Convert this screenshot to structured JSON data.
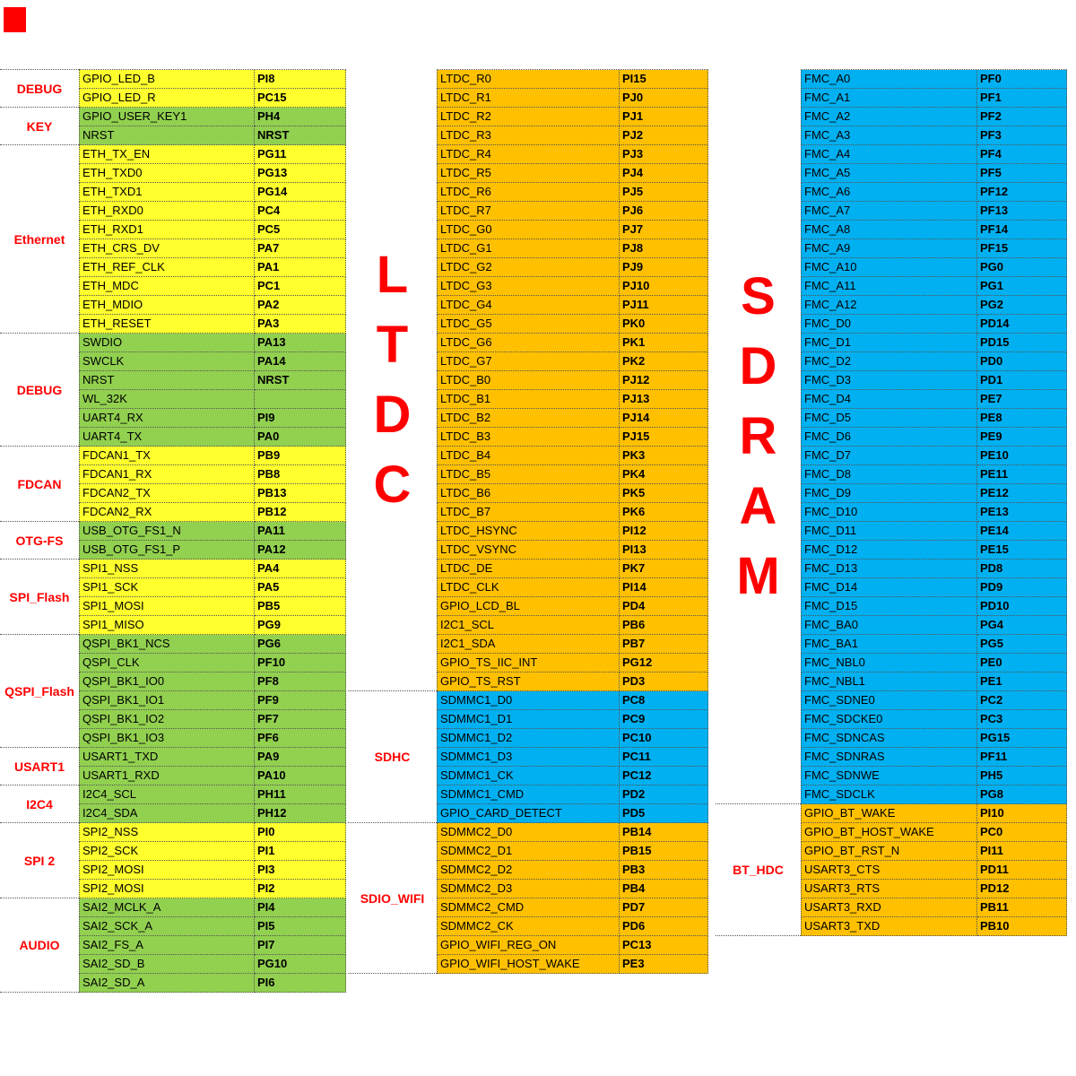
{
  "colors": {
    "yellow": "#FFFF2E",
    "green": "#92D050",
    "orange": "#FFC000",
    "blue": "#00B0F0",
    "label_red": "#FF0000"
  },
  "left_table": {
    "groups": [
      {
        "label": "DEBUG",
        "big": false,
        "color": "yellow",
        "rows": [
          [
            "GPIO_LED_B",
            "PI8"
          ],
          [
            "GPIO_LED_R",
            "PC15"
          ]
        ]
      },
      {
        "label": "KEY",
        "big": false,
        "color": "green",
        "rows": [
          [
            "GPIO_USER_KEY1",
            "PH4"
          ],
          [
            "NRST",
            "NRST"
          ]
        ]
      },
      {
        "label": "Ethernet",
        "big": false,
        "color": "yellow",
        "rows": [
          [
            "ETH_TX_EN",
            "PG11"
          ],
          [
            "ETH_TXD0",
            "PG13"
          ],
          [
            "ETH_TXD1",
            "PG14"
          ],
          [
            "ETH_RXD0",
            "PC4"
          ],
          [
            "ETH_RXD1",
            "PC5"
          ],
          [
            "ETH_CRS_DV",
            "PA7"
          ],
          [
            "ETH_REF_CLK",
            "PA1"
          ],
          [
            "ETH_MDC",
            "PC1"
          ],
          [
            "ETH_MDIO",
            "PA2"
          ],
          [
            "ETH_RESET",
            "PA3"
          ]
        ]
      },
      {
        "label": "DEBUG",
        "big": false,
        "color": "green",
        "rows": [
          [
            "SWDIO",
            "PA13"
          ],
          [
            "SWCLK",
            "PA14"
          ],
          [
            "NRST",
            "NRST"
          ],
          [
            "WL_32K",
            ""
          ],
          [
            "UART4_RX",
            "PI9"
          ],
          [
            "UART4_TX",
            "PA0"
          ]
        ]
      },
      {
        "label": "FDCAN",
        "big": false,
        "color": "yellow",
        "rows": [
          [
            "FDCAN1_TX",
            "PB9"
          ],
          [
            "FDCAN1_RX",
            "PB8"
          ],
          [
            "FDCAN2_TX",
            "PB13"
          ],
          [
            "FDCAN2_RX",
            "PB12"
          ]
        ]
      },
      {
        "label": "OTG-FS",
        "big": false,
        "color": "green",
        "rows": [
          [
            "USB_OTG_FS1_N",
            "PA11"
          ],
          [
            "USB_OTG_FS1_P",
            "PA12"
          ]
        ]
      },
      {
        "label": "SPI_Flash",
        "big": false,
        "color": "yellow",
        "rows": [
          [
            "SPI1_NSS",
            "PA4"
          ],
          [
            "SPI1_SCK",
            "PA5"
          ],
          [
            "SPI1_MOSI",
            "PB5"
          ],
          [
            "SPI1_MISO",
            "PG9"
          ]
        ]
      },
      {
        "label": "QSPI_Flash",
        "big": false,
        "color": "green",
        "rows": [
          [
            "QSPI_BK1_NCS",
            "PG6"
          ],
          [
            "QSPI_CLK",
            "PF10"
          ],
          [
            "QSPI_BK1_IO0",
            "PF8"
          ],
          [
            "QSPI_BK1_IO1",
            "PF9"
          ],
          [
            "QSPI_BK1_IO2",
            "PF7"
          ],
          [
            "QSPI_BK1_IO3",
            "PF6"
          ]
        ]
      },
      {
        "label": "USART1",
        "big": false,
        "color": "green",
        "rows": [
          [
            "USART1_TXD",
            "PA9"
          ],
          [
            "USART1_RXD",
            "PA10"
          ]
        ]
      },
      {
        "label": "I2C4",
        "big": false,
        "color": "green",
        "rows": [
          [
            "I2C4_SCL",
            "PH11"
          ],
          [
            "I2C4_SDA",
            "PH12"
          ]
        ]
      },
      {
        "label": "SPI 2",
        "big": false,
        "color": "yellow",
        "rows": [
          [
            "SPI2_NSS",
            "PI0"
          ],
          [
            "SPI2_SCK",
            "PI1"
          ],
          [
            "SPI2_MOSI",
            "PI3"
          ],
          [
            "SPI2_MOSI",
            "PI2"
          ]
        ]
      },
      {
        "label": "AUDIO",
        "big": false,
        "color": "green",
        "rows": [
          [
            "SAI2_MCLK_A",
            "PI4"
          ],
          [
            "SAI2_SCK_A",
            "PI5"
          ],
          [
            "SAI2_FS_A",
            "PI7"
          ],
          [
            "SAI2_SD_B",
            "PG10"
          ],
          [
            "SAI2_SD_A",
            "PI6"
          ]
        ]
      }
    ]
  },
  "middle_table": {
    "groups": [
      {
        "label": "LTDC",
        "big": true,
        "color": "orange",
        "rows": [
          [
            "LTDC_R0",
            "PI15"
          ],
          [
            "LTDC_R1",
            "PJ0"
          ],
          [
            "LTDC_R2",
            "PJ1"
          ],
          [
            "LTDC_R3",
            "PJ2"
          ],
          [
            "LTDC_R4",
            "PJ3"
          ],
          [
            "LTDC_R5",
            "PJ4"
          ],
          [
            "LTDC_R6",
            "PJ5"
          ],
          [
            "LTDC_R7",
            "PJ6"
          ],
          [
            "LTDC_G0",
            "PJ7"
          ],
          [
            "LTDC_G1",
            "PJ8"
          ],
          [
            "LTDC_G2",
            "PJ9"
          ],
          [
            "LTDC_G3",
            "PJ10"
          ],
          [
            "LTDC_G4",
            "PJ11"
          ],
          [
            "LTDC_G5",
            "PK0"
          ],
          [
            "LTDC_G6",
            "PK1"
          ],
          [
            "LTDC_G7",
            "PK2"
          ],
          [
            "LTDC_B0",
            "PJ12"
          ],
          [
            "LTDC_B1",
            "PJ13"
          ],
          [
            "LTDC_B2",
            "PJ14"
          ],
          [
            "LTDC_B3",
            "PJ15"
          ],
          [
            "LTDC_B4",
            "PK3"
          ],
          [
            "LTDC_B5",
            "PK4"
          ],
          [
            "LTDC_B6",
            "PK5"
          ],
          [
            "LTDC_B7",
            "PK6"
          ],
          [
            "LTDC_HSYNC",
            "PI12"
          ],
          [
            "LTDC_VSYNC",
            "PI13"
          ],
          [
            "LTDC_DE",
            "PK7"
          ],
          [
            "LTDC_CLK",
            "PI14"
          ],
          [
            "GPIO_LCD_BL",
            "PD4"
          ],
          [
            "I2C1_SCL",
            "PB6"
          ],
          [
            "I2C1_SDA",
            "PB7"
          ],
          [
            "GPIO_TS_IIC_INT",
            "PG12"
          ],
          [
            "GPIO_TS_RST",
            "PD3"
          ]
        ]
      },
      {
        "label": "SDHC",
        "big": false,
        "color": "blue",
        "rows": [
          [
            "SDMMC1_D0",
            "PC8"
          ],
          [
            "SDMMC1_D1",
            "PC9"
          ],
          [
            "SDMMC1_D2",
            "PC10"
          ],
          [
            "SDMMC1_D3",
            "PC11"
          ],
          [
            "SDMMC1_CK",
            "PC12"
          ],
          [
            "SDMMC1_CMD",
            "PD2"
          ],
          [
            "GPIO_CARD_DETECT",
            "PD5"
          ]
        ]
      },
      {
        "label": "SDIO_WIFI",
        "big": false,
        "color": "orange",
        "rows": [
          [
            "SDMMC2_D0",
            "PB14"
          ],
          [
            "SDMMC2_D1",
            "PB15"
          ],
          [
            "SDMMC2_D2",
            "PB3"
          ],
          [
            "SDMMC2_D3",
            "PB4"
          ],
          [
            "SDMMC2_CMD",
            "PD7"
          ],
          [
            "SDMMC2_CK",
            "PD6"
          ],
          [
            "GPIO_WIFI_REG_ON",
            "PC13"
          ],
          [
            "GPIO_WIFI_HOST_WAKE",
            "PE3"
          ]
        ]
      }
    ]
  },
  "right_table": {
    "groups": [
      {
        "label": "SDRAM",
        "big": true,
        "color": "blue",
        "rows": [
          [
            "FMC_A0",
            "PF0"
          ],
          [
            "FMC_A1",
            "PF1"
          ],
          [
            "FMC_A2",
            "PF2"
          ],
          [
            "FMC_A3",
            "PF3"
          ],
          [
            "FMC_A4",
            "PF4"
          ],
          [
            "FMC_A5",
            "PF5"
          ],
          [
            "FMC_A6",
            "PF12"
          ],
          [
            "FMC_A7",
            "PF13"
          ],
          [
            "FMC_A8",
            "PF14"
          ],
          [
            "FMC_A9",
            "PF15"
          ],
          [
            "FMC_A10",
            "PG0"
          ],
          [
            "FMC_A11",
            "PG1"
          ],
          [
            "FMC_A12",
            "PG2"
          ],
          [
            "FMC_D0",
            "PD14"
          ],
          [
            "FMC_D1",
            "PD15"
          ],
          [
            "FMC_D2",
            "PD0"
          ],
          [
            "FMC_D3",
            "PD1"
          ],
          [
            "FMC_D4",
            "PE7"
          ],
          [
            "FMC_D5",
            "PE8"
          ],
          [
            "FMC_D6",
            "PE9"
          ],
          [
            "FMC_D7",
            "PE10"
          ],
          [
            "FMC_D8",
            "PE11"
          ],
          [
            "FMC_D9",
            "PE12"
          ],
          [
            "FMC_D10",
            "PE13"
          ],
          [
            "FMC_D11",
            "PE14"
          ],
          [
            "FMC_D12",
            "PE15"
          ],
          [
            "FMC_D13",
            "PD8"
          ],
          [
            "FMC_D14",
            "PD9"
          ],
          [
            "FMC_D15",
            "PD10"
          ],
          [
            "FMC_BA0",
            "PG4"
          ],
          [
            "FMC_BA1",
            "PG5"
          ],
          [
            "FMC_NBL0",
            "PE0"
          ],
          [
            "FMC_NBL1",
            "PE1"
          ],
          [
            "FMC_SDNE0",
            "PC2"
          ],
          [
            "FMC_SDCKE0",
            "PC3"
          ],
          [
            "FMC_SDNCAS",
            "PG15"
          ],
          [
            "FMC_SDNRAS",
            "PF11"
          ],
          [
            "FMC_SDNWE",
            "PH5"
          ],
          [
            "FMC_SDCLK",
            "PG8"
          ]
        ]
      },
      {
        "label": "BT_HDC",
        "big": false,
        "color": "orange",
        "rows": [
          [
            "GPIO_BT_WAKE",
            "PI10"
          ],
          [
            "GPIO_BT_HOST_WAKE",
            "PC0"
          ],
          [
            "GPIO_BT_RST_N",
            "PI11"
          ],
          [
            "USART3_CTS",
            "PD11"
          ],
          [
            "USART3_RTS",
            "PD12"
          ],
          [
            "USART3_RXD",
            "PB11"
          ],
          [
            "USART3_TXD",
            "PB10"
          ]
        ]
      }
    ]
  }
}
